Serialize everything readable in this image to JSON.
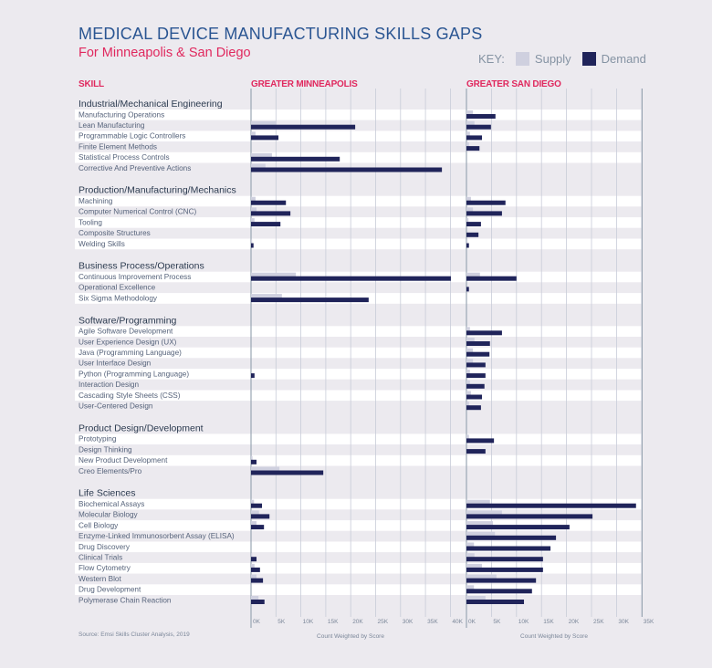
{
  "header": {
    "title": "MEDICAL DEVICE MANUFACTURING SKILLS GAPS",
    "subtitle": "For Minneapolis & San Diego",
    "key_label": "KEY:",
    "supply_label": "Supply",
    "demand_label": "Demand"
  },
  "columns": {
    "skill": "SKILL",
    "left": "GREATER MINNEAPOLIS",
    "right": "GREATER SAN DIEGO"
  },
  "footer": {
    "source": "Source: Emsi Skills Cluster Analysis, 2019"
  },
  "colors": {
    "supply": "#cfd0df",
    "demand": "#20245a",
    "title": "#2a5592",
    "accent": "#e0285e"
  },
  "chart_data": {
    "type": "bar",
    "orientation": "horizontal",
    "title": "MEDICAL DEVICE MANUFACTURING SKILLS GAPS",
    "subtitle": "For Minneapolis & San Diego",
    "legend": {
      "position": "top-right",
      "entries": [
        "Supply",
        "Demand"
      ]
    },
    "grid": true,
    "panels": [
      {
        "name": "GREATER MINNEAPOLIS",
        "xlabel": "Count Weighted by Score",
        "xlim": [
          0,
          40000
        ],
        "ticks": [
          "0K",
          "5K",
          "10K",
          "15K",
          "20K",
          "25K",
          "30K",
          "35K",
          "40K"
        ]
      },
      {
        "name": "GREATER SAN DIEGO",
        "xlabel": "Count Weighted by Score",
        "xlim": [
          0,
          35000
        ],
        "ticks": [
          "0K",
          "5K",
          "10K",
          "15K",
          "20K",
          "25K",
          "30K",
          "35K"
        ]
      }
    ],
    "groups": [
      {
        "category": "Industrial/Mechanical Engineering",
        "skills": [
          {
            "name": "Manufacturing Operations",
            "mpls": {
              "supply": 0,
              "demand": 0
            },
            "sd": {
              "supply": 1300,
              "demand": 5800
            }
          },
          {
            "name": "Lean Manufacturing",
            "mpls": {
              "supply": 5100,
              "demand": 20900
            },
            "sd": {
              "supply": 1600,
              "demand": 4900
            }
          },
          {
            "name": "Programmable Logic Controllers",
            "mpls": {
              "supply": 900,
              "demand": 5500
            },
            "sd": {
              "supply": 700,
              "demand": 3100
            }
          },
          {
            "name": "Finite Element Methods",
            "mpls": {
              "supply": 0,
              "demand": 0
            },
            "sd": {
              "supply": 500,
              "demand": 2600
            }
          },
          {
            "name": "Statistical Process Controls",
            "mpls": {
              "supply": 4200,
              "demand": 17800
            },
            "sd": {
              "supply": 0,
              "demand": 0
            }
          },
          {
            "name": "Corrective And Preventive Actions",
            "mpls": {
              "supply": 2900,
              "demand": 38300
            },
            "sd": {
              "supply": 0,
              "demand": 0
            }
          }
        ]
      },
      {
        "category": "Production/Manufacturing/Mechanics",
        "skills": [
          {
            "name": "Machining",
            "mpls": {
              "supply": 900,
              "demand": 7000
            },
            "sd": {
              "supply": 900,
              "demand": 7800
            }
          },
          {
            "name": "Computer Numerical Control (CNC)",
            "mpls": {
              "supply": 1100,
              "demand": 7900
            },
            "sd": {
              "supply": 1300,
              "demand": 7100
            }
          },
          {
            "name": "Tooling",
            "mpls": {
              "supply": 700,
              "demand": 5900
            },
            "sd": {
              "supply": 400,
              "demand": 2900
            }
          },
          {
            "name": "Composite Structures",
            "mpls": {
              "supply": 0,
              "demand": 0
            },
            "sd": {
              "supply": 0,
              "demand": 2400
            }
          },
          {
            "name": "Welding Skills",
            "mpls": {
              "supply": 200,
              "demand": 500
            },
            "sd": {
              "supply": 200,
              "demand": 500
            }
          }
        ]
      },
      {
        "category": "Business Process/Operations",
        "skills": [
          {
            "name": "Continuous Improvement Process",
            "mpls": {
              "supply": 9000,
              "demand": 40100
            },
            "sd": {
              "supply": 2700,
              "demand": 10000
            }
          },
          {
            "name": "Operational Excellence",
            "mpls": {
              "supply": 0,
              "demand": 0
            },
            "sd": {
              "supply": 0,
              "demand": 500
            }
          },
          {
            "name": "Six Sigma Methodology",
            "mpls": {
              "supply": 6200,
              "demand": 23600
            },
            "sd": {
              "supply": 0,
              "demand": 0
            }
          }
        ]
      },
      {
        "category": "Software/Programming",
        "skills": [
          {
            "name": "Agile Software Development",
            "mpls": {
              "supply": 0,
              "demand": 0
            },
            "sd": {
              "supply": 700,
              "demand": 7100
            }
          },
          {
            "name": "User Experience Design (UX)",
            "mpls": {
              "supply": 0,
              "demand": 0
            },
            "sd": {
              "supply": 1600,
              "demand": 4700
            }
          },
          {
            "name": "Java (Programming Language)",
            "mpls": {
              "supply": 0,
              "demand": 0
            },
            "sd": {
              "supply": 1300,
              "demand": 4600
            }
          },
          {
            "name": "User Interface Design",
            "mpls": {
              "supply": 0,
              "demand": 0
            },
            "sd": {
              "supply": 1300,
              "demand": 3800
            }
          },
          {
            "name": "Python (Programming Language)",
            "mpls": {
              "supply": 0,
              "demand": 700
            },
            "sd": {
              "supply": 700,
              "demand": 3800
            }
          },
          {
            "name": "Interaction Design",
            "mpls": {
              "supply": 0,
              "demand": 0
            },
            "sd": {
              "supply": 700,
              "demand": 3600
            }
          },
          {
            "name": "Cascading Style Sheets (CSS)",
            "mpls": {
              "supply": 0,
              "demand": 0
            },
            "sd": {
              "supply": 900,
              "demand": 3100
            }
          },
          {
            "name": "User-Centered Design",
            "mpls": {
              "supply": 0,
              "demand": 0
            },
            "sd": {
              "supply": 500,
              "demand": 2900
            }
          }
        ]
      },
      {
        "category": "Product Design/Development",
        "skills": [
          {
            "name": "Prototyping",
            "mpls": {
              "supply": 0,
              "demand": 0
            },
            "sd": {
              "supply": 500,
              "demand": 5500
            }
          },
          {
            "name": "Design Thinking",
            "mpls": {
              "supply": 0,
              "demand": 0
            },
            "sd": {
              "supply": 0,
              "demand": 3800
            }
          },
          {
            "name": "New Product Development",
            "mpls": {
              "supply": 300,
              "demand": 1100
            },
            "sd": {
              "supply": 0,
              "demand": 0
            }
          },
          {
            "name": "Creo Elements/Pro",
            "mpls": {
              "supply": 5700,
              "demand": 14500
            },
            "sd": {
              "supply": 0,
              "demand": 0
            }
          }
        ]
      },
      {
        "category": "Life Sciences",
        "skills": [
          {
            "name": "Biochemical Assays",
            "mpls": {
              "supply": 600,
              "demand": 2200
            },
            "sd": {
              "supply": 4700,
              "demand": 33900
            }
          },
          {
            "name": "Molecular Biology",
            "mpls": {
              "supply": 1600,
              "demand": 3700
            },
            "sd": {
              "supply": 7100,
              "demand": 25200
            }
          },
          {
            "name": "Cell Biology",
            "mpls": {
              "supply": 1100,
              "demand": 2600
            },
            "sd": {
              "supply": 5300,
              "demand": 20600
            }
          },
          {
            "name": "Enzyme-Linked Immunosorbent Assay (ELISA)",
            "mpls": {
              "supply": 0,
              "demand": 0
            },
            "sd": {
              "supply": 5700,
              "demand": 17900
            }
          },
          {
            "name": "Drug Discovery",
            "mpls": {
              "supply": 0,
              "demand": 0
            },
            "sd": {
              "supply": 1500,
              "demand": 16800
            }
          },
          {
            "name": "Clinical Trials",
            "mpls": {
              "supply": 200,
              "demand": 1100
            },
            "sd": {
              "supply": 1600,
              "demand": 15300
            }
          },
          {
            "name": "Flow Cytometry",
            "mpls": {
              "supply": 700,
              "demand": 1800
            },
            "sd": {
              "supply": 3100,
              "demand": 15300
            }
          },
          {
            "name": "Western Blot",
            "mpls": {
              "supply": 1100,
              "demand": 2400
            },
            "sd": {
              "supply": 6000,
              "demand": 13900
            }
          },
          {
            "name": "Drug Development",
            "mpls": {
              "supply": 0,
              "demand": 0
            },
            "sd": {
              "supply": 1500,
              "demand": 13100
            }
          },
          {
            "name": "Polymerase Chain Reaction",
            "mpls": {
              "supply": 1500,
              "demand": 2700
            },
            "sd": {
              "supply": 3800,
              "demand": 11500
            }
          }
        ]
      }
    ]
  }
}
